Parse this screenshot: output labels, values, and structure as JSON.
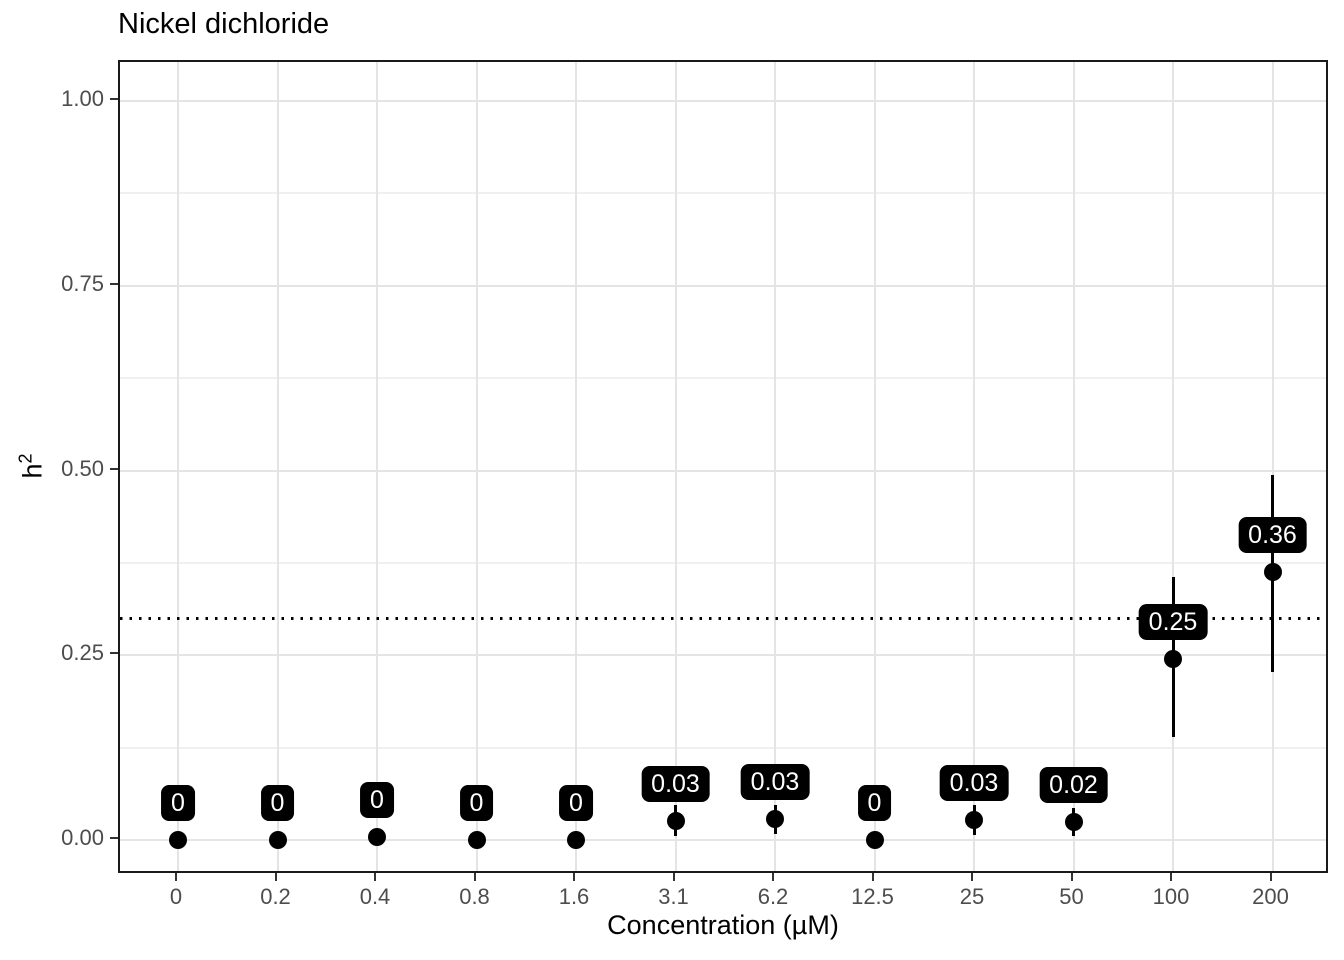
{
  "title": "Nickel dichloride",
  "axes": {
    "x_title": "Concentration (µM)",
    "y_title_base": "h",
    "y_title_sup": "2"
  },
  "chart_data": {
    "type": "scatter",
    "title": "Nickel dichloride",
    "xlabel": "Concentration (µM)",
    "ylabel": "h^2",
    "legend": "none",
    "grid": "major-and-minor-horizontal, major-vertical",
    "ylim": [
      -0.05,
      1.05
    ],
    "y_ticks": [
      {
        "value": 0.0,
        "label": "0.00"
      },
      {
        "value": 0.25,
        "label": "0.25"
      },
      {
        "value": 0.5,
        "label": "0.50"
      },
      {
        "value": 0.75,
        "label": "0.75"
      },
      {
        "value": 1.0,
        "label": "1.00"
      }
    ],
    "categories": [
      "0",
      "0.2",
      "0.4",
      "0.8",
      "1.6",
      "3.1",
      "6.2",
      "12.5",
      "25",
      "50",
      "100",
      "200"
    ],
    "reference_line": {
      "y": 0.3,
      "style": "dotted",
      "color": "#000000"
    },
    "points": [
      {
        "x": "0",
        "y": 0.0,
        "label": "0"
      },
      {
        "x": "0.2",
        "y": 0.0,
        "label": "0"
      },
      {
        "x": "0.4",
        "y": 0.004,
        "label": "0"
      },
      {
        "x": "0.8",
        "y": 0.0,
        "label": "0"
      },
      {
        "x": "1.6",
        "y": 0.0,
        "label": "0"
      },
      {
        "x": "3.1",
        "y": 0.026,
        "label": "0.03",
        "ymin": 0.006,
        "ymax": 0.047
      },
      {
        "x": "6.2",
        "y": 0.028,
        "label": "0.03",
        "ymin": 0.008,
        "ymax": 0.048
      },
      {
        "x": "12.5",
        "y": 0.0,
        "label": "0"
      },
      {
        "x": "25",
        "y": 0.027,
        "label": "0.03",
        "ymin": 0.007,
        "ymax": 0.047
      },
      {
        "x": "50",
        "y": 0.024,
        "label": "0.02",
        "ymin": 0.005,
        "ymax": 0.043
      },
      {
        "x": "100",
        "y": 0.245,
        "label": "0.25",
        "ymin": 0.139,
        "ymax": 0.356
      },
      {
        "x": "200",
        "y": 0.363,
        "label": "0.36",
        "ymin": 0.227,
        "ymax": 0.494
      }
    ]
  },
  "colors": {
    "point": "#000000",
    "errorbar": "#000000",
    "label_bg": "#000000",
    "label_text": "#ffffff",
    "grid_major": "#e4e4e4",
    "grid_minor": "#f0f0f0",
    "panel_border": "#1a1a1a",
    "tick": "#333333",
    "tick_label": "#4d4d4d",
    "title_text": "#000000"
  }
}
